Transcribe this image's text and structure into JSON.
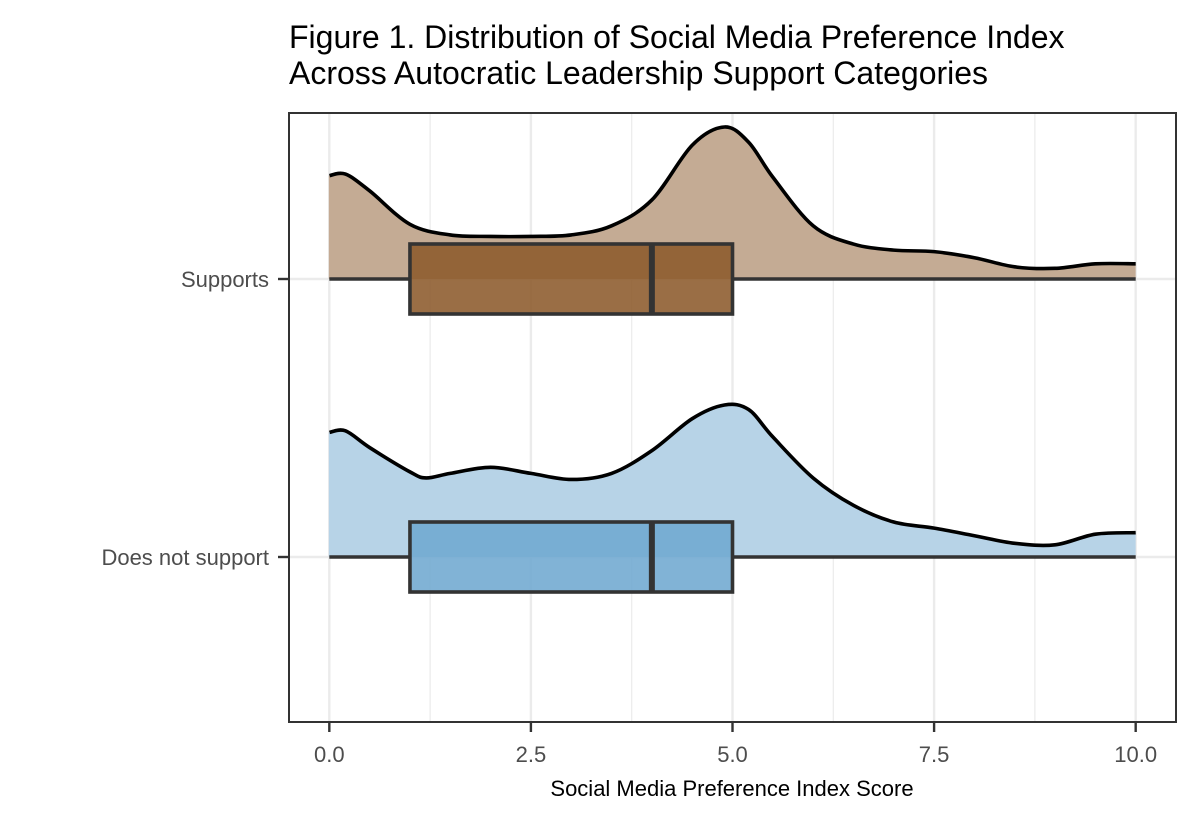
{
  "chart_data": {
    "type": "raincloud",
    "title_lines": [
      "Figure 1. Distribution of Social Media Preference Index",
      "Across Autocratic Leadership Support Categories"
    ],
    "xlabel": "Social Media Preference Index Score",
    "ylabel": "",
    "xlim": [
      -0.5,
      10.5
    ],
    "x_ticks": [
      0,
      2.5,
      5,
      7.5,
      10
    ],
    "x_tick_labels": [
      "0.0",
      "2.5",
      "5.0",
      "7.5",
      "10.0"
    ],
    "grid": true,
    "legend": "none",
    "groups": [
      {
        "label": "Supports",
        "color": "#8c5a2b",
        "density_color": "#c4ab94",
        "box": {
          "min": 0,
          "q1": 1,
          "median": 4,
          "q3": 5,
          "max": 10
        },
        "density": {
          "x": [
            0,
            0.2,
            0.5,
            1,
            1.5,
            2,
            2.5,
            3,
            3.5,
            4,
            4.5,
            4.9,
            5.2,
            5.5,
            6,
            6.5,
            7,
            7.5,
            8,
            8.5,
            9,
            9.5,
            10
          ],
          "y": [
            0.68,
            0.69,
            0.58,
            0.36,
            0.29,
            0.28,
            0.28,
            0.29,
            0.35,
            0.52,
            0.88,
            1.0,
            0.9,
            0.67,
            0.35,
            0.23,
            0.19,
            0.18,
            0.14,
            0.08,
            0.07,
            0.1,
            0.1
          ]
        }
      },
      {
        "label": "Does not support",
        "color": "#6fa8d0",
        "density_color": "#b7d3e7",
        "box": {
          "min": 0,
          "q1": 1,
          "median": 4,
          "q3": 5,
          "max": 10
        },
        "density": {
          "x": [
            0,
            0.2,
            0.5,
            1,
            1.2,
            1.5,
            2,
            2.5,
            3,
            3.5,
            4,
            4.5,
            4.9,
            5.2,
            5.5,
            6,
            6.5,
            7,
            7.5,
            8,
            8.5,
            9,
            9.5,
            10
          ],
          "y": [
            0.82,
            0.83,
            0.72,
            0.56,
            0.52,
            0.55,
            0.59,
            0.55,
            0.51,
            0.55,
            0.7,
            0.91,
            1.0,
            0.97,
            0.79,
            0.52,
            0.34,
            0.23,
            0.19,
            0.14,
            0.09,
            0.08,
            0.15,
            0.16
          ]
        }
      }
    ]
  }
}
